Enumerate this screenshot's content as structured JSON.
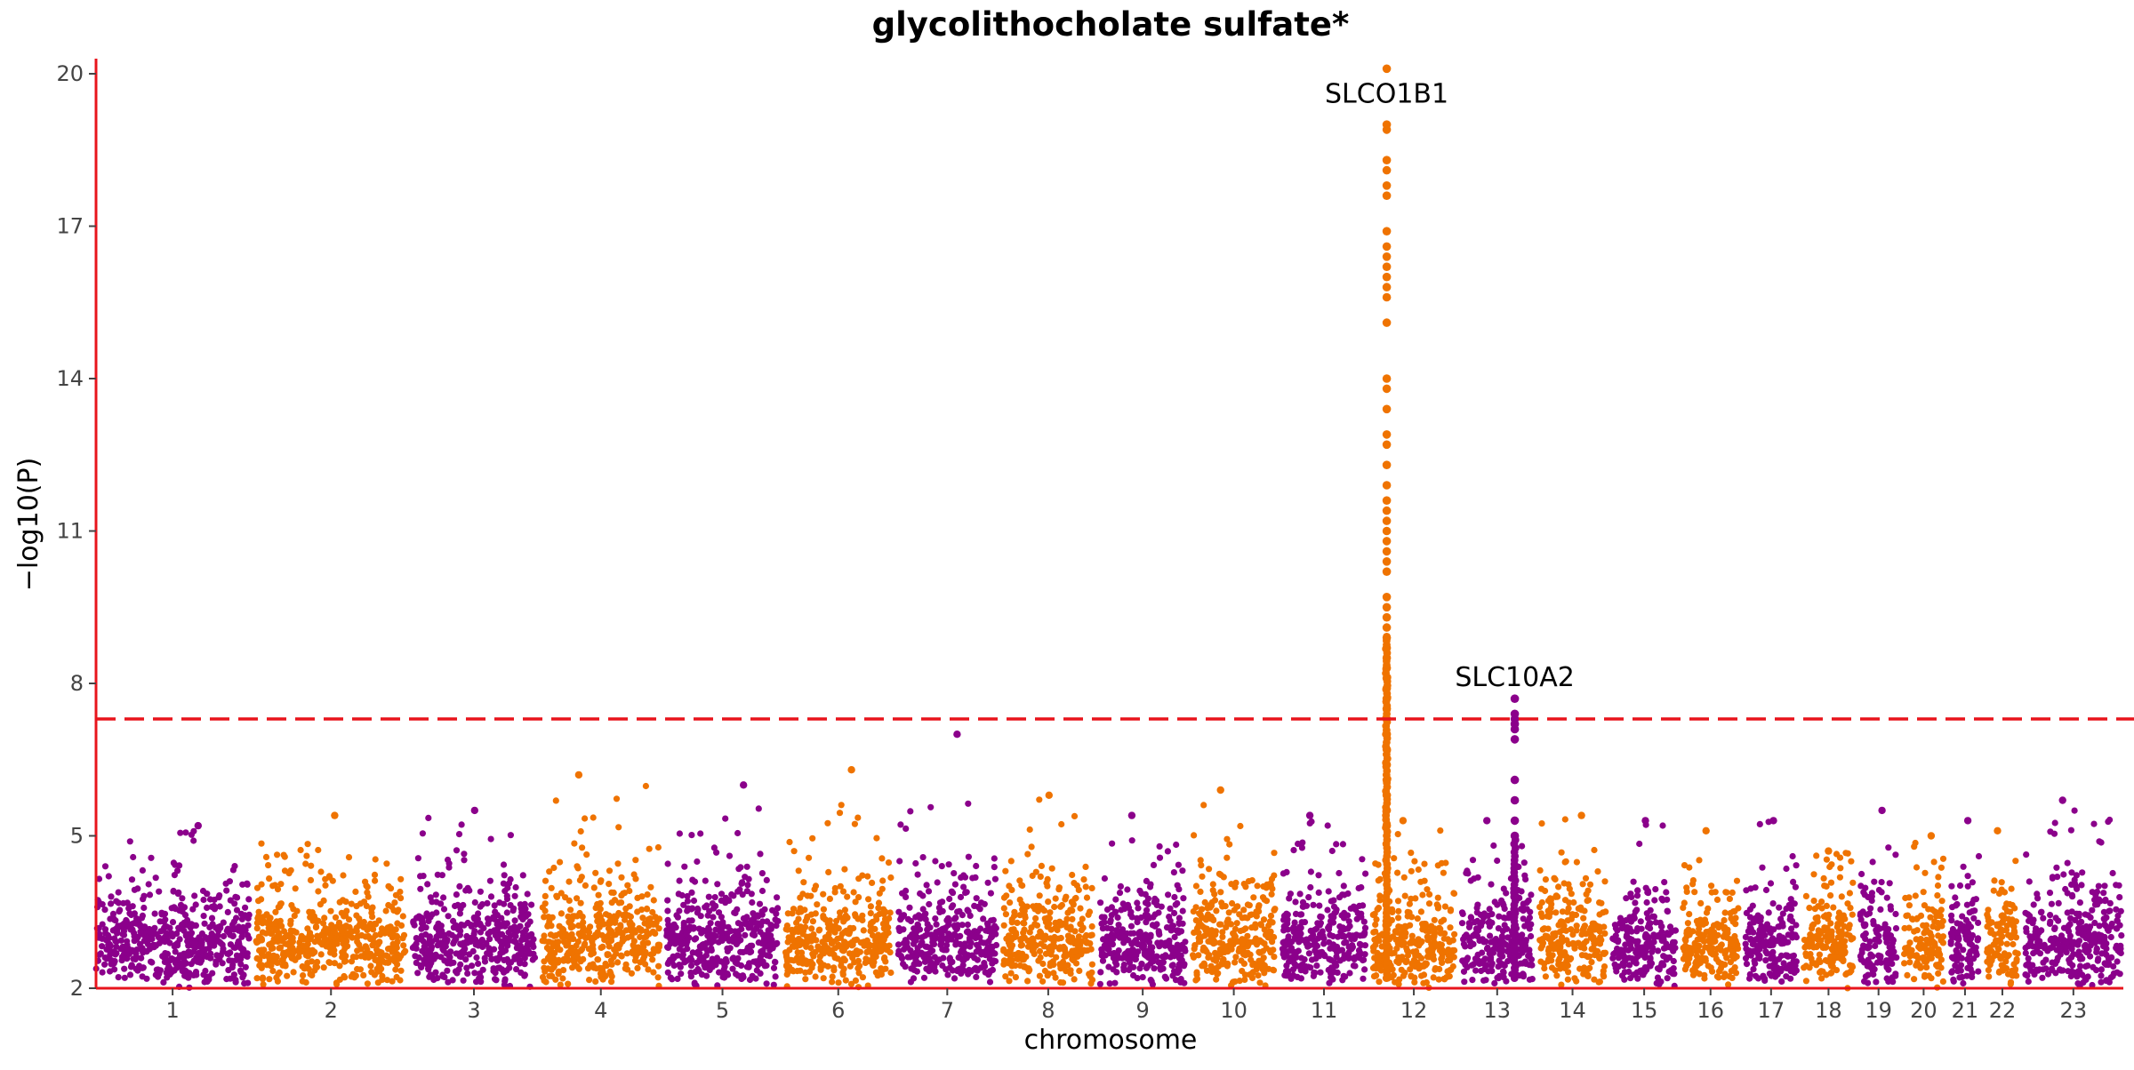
{
  "chart_data": {
    "type": "scatter",
    "subtype": "manhattan",
    "title": "glycolithocholate sulfate*",
    "xlabel": "chromosome",
    "ylabel": "−log10(P)",
    "ylim": [
      2,
      20.3
    ],
    "yticks": [
      2,
      5,
      8,
      11,
      14,
      17,
      20
    ],
    "significance_threshold": 7.3,
    "threshold_style": "dashed red line",
    "grid": false,
    "legend": "none",
    "colors": {
      "odd_chromosome": "#8b008b",
      "even_chromosome": "#ef7300",
      "axis": "#e8141c",
      "threshold": "#e8141c"
    },
    "chromosomes": [
      {
        "label": "1",
        "size": 248,
        "max": 5.2
      },
      {
        "label": "2",
        "size": 242,
        "max": 5.4
      },
      {
        "label": "3",
        "size": 198,
        "max": 5.5
      },
      {
        "label": "4",
        "size": 190,
        "max": 6.2
      },
      {
        "label": "5",
        "size": 181,
        "max": 6.0
      },
      {
        "label": "6",
        "size": 171,
        "max": 6.3
      },
      {
        "label": "7",
        "size": 159,
        "max": 7.0
      },
      {
        "label": "8",
        "size": 145,
        "max": 5.8
      },
      {
        "label": "9",
        "size": 138,
        "max": 5.4
      },
      {
        "label": "10",
        "size": 134,
        "max": 5.9
      },
      {
        "label": "11",
        "size": 135,
        "max": 5.4
      },
      {
        "label": "12",
        "size": 133,
        "max": 20.1
      },
      {
        "label": "13",
        "size": 114,
        "max": 7.7
      },
      {
        "label": "14",
        "size": 107,
        "max": 5.4
      },
      {
        "label": "15",
        "size": 102,
        "max": 5.3
      },
      {
        "label": "16",
        "size": 90,
        "max": 5.1
      },
      {
        "label": "17",
        "size": 83,
        "max": 5.3
      },
      {
        "label": "18",
        "size": 80,
        "max": 4.7
      },
      {
        "label": "19",
        "size": 59,
        "max": 5.5
      },
      {
        "label": "20",
        "size": 64,
        "max": 5.0
      },
      {
        "label": "21",
        "size": 47,
        "max": 5.3
      },
      {
        "label": "22",
        "size": 51,
        "max": 5.1
      },
      {
        "label": "23",
        "size": 156,
        "max": 5.7
      }
    ],
    "peaks": [
      {
        "gene": "SLCO1B1",
        "chromosome": "12",
        "position_fraction": 0.17,
        "values": [
          20.1,
          19.0,
          18.9,
          18.3,
          18.1,
          17.8,
          17.6,
          16.9,
          16.6,
          16.4,
          16.2,
          16.0,
          15.8,
          15.6,
          15.1,
          14.0,
          13.8,
          13.4,
          12.9,
          12.7,
          12.3,
          11.9,
          11.6,
          11.4,
          11.2,
          11.0,
          10.8,
          10.6,
          10.4,
          10.2,
          9.7,
          9.5,
          9.3,
          9.1,
          8.9,
          8.7,
          8.5,
          8.3,
          8.1,
          7.9,
          7.7,
          7.5,
          7.3,
          7.0,
          6.7,
          6.4,
          6.1,
          5.8,
          5.5,
          5.2
        ]
      },
      {
        "gene": "SLC10A2",
        "chromosome": "13",
        "position_fraction": 0.75,
        "values": [
          7.7,
          7.4,
          7.3,
          7.2,
          7.1,
          6.9,
          6.1,
          5.7,
          5.3,
          5.0
        ]
      }
    ]
  }
}
